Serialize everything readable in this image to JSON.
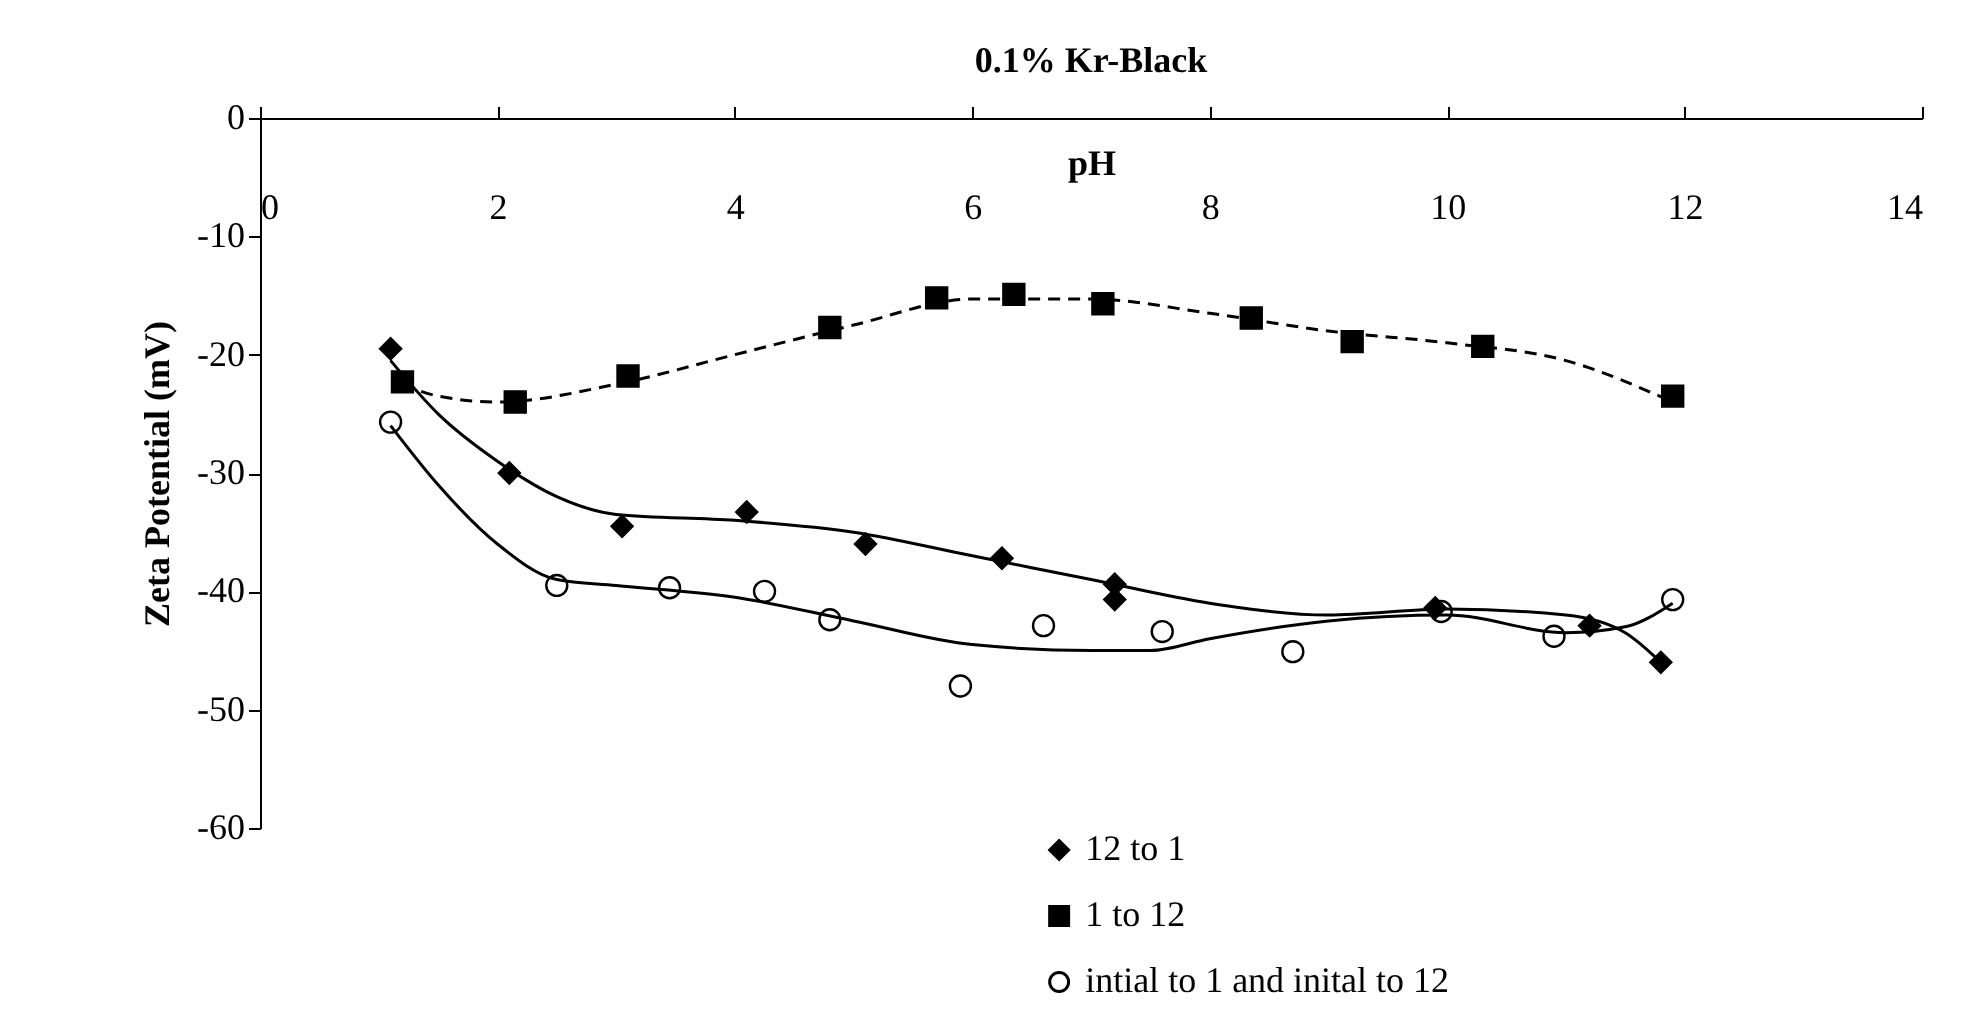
{
  "chart_data": {
    "type": "scatter",
    "title": "0.1% Kr-Black",
    "xlabel": "pH",
    "ylabel": "Zeta Potential (mV)",
    "xlim": [
      0,
      14
    ],
    "xticks": [
      0,
      2,
      4,
      6,
      8,
      10,
      12,
      14
    ],
    "ylim": [
      -60,
      0
    ],
    "yticks": [
      -60,
      -50,
      -40,
      -30,
      -20,
      -10,
      0
    ],
    "grid": false,
    "legend": "bottom",
    "series": [
      {
        "name": "12 to 1",
        "color": "#000000",
        "marker": "diamond",
        "x": [
          1.1,
          2.1,
          3.05,
          4.1,
          5.1,
          6.25,
          7.2,
          7.2,
          9.9,
          11.2,
          11.8
        ],
        "values": [
          -19.5,
          -30,
          -34.5,
          -33.3,
          -36,
          -37.2,
          -39.4,
          -40.7,
          -41.4,
          -42.9,
          -46
        ]
      },
      {
        "name": "1 to 12",
        "color": "#000000",
        "marker": "square",
        "x": [
          1.2,
          2.15,
          3.1,
          4.8,
          5.7,
          6.35,
          7.1,
          8.35,
          9.2,
          10.3,
          11.9
        ],
        "values": [
          -22.3,
          -24,
          -21.8,
          -17.7,
          -15.2,
          -14.9,
          -15.7,
          -16.9,
          -18.9,
          -19.3,
          -23.5
        ]
      },
      {
        "name": "intial to 1 and inital to 12",
        "color": "#000000",
        "marker": "circle",
        "x": [
          1.1,
          2.5,
          3.45,
          4.25,
          4.8,
          5.9,
          6.6,
          7.6,
          8.7,
          9.95,
          10.9,
          11.9
        ],
        "values": [
          -25.7,
          -39.5,
          -39.7,
          -40,
          -42.4,
          -48,
          -42.9,
          -43.4,
          -45.1,
          -41.7,
          -43.8,
          -40.7
        ]
      },
      {
        "type": "line",
        "color": "#000000",
        "line_style": "solid",
        "x": [
          1.1,
          1.5,
          2,
          2.5,
          3,
          4,
          5,
          6,
          7,
          8,
          9,
          10,
          11,
          11.5,
          11.8
        ],
        "values": [
          -20.5,
          -25,
          -29,
          -32,
          -33.5,
          -34,
          -35,
          -37,
          -39,
          -41,
          -42,
          -41.5,
          -42,
          -43.5,
          -46
        ]
      },
      {
        "type": "line",
        "color": "#000000",
        "line_style": "dashed",
        "x": [
          1.2,
          1.5,
          2,
          3,
          4,
          5,
          6,
          7,
          8,
          9,
          10,
          11,
          11.9
        ],
        "values": [
          -22.5,
          -23.5,
          -24,
          -22.5,
          -20,
          -17.5,
          -15.3,
          -15.3,
          -16.5,
          -18,
          -19,
          -20.5,
          -24
        ]
      },
      {
        "type": "line",
        "color": "#000000",
        "line_style": "solid",
        "x": [
          1.1,
          1.5,
          2,
          2.5,
          3,
          4,
          5,
          6,
          7,
          7.5,
          8,
          9,
          10,
          11,
          11.5,
          11.9
        ],
        "values": [
          -26,
          -31,
          -36,
          -39,
          -39.5,
          -40.5,
          -42.5,
          -44.5,
          -45,
          -45,
          -44,
          -42.5,
          -42,
          -43.5,
          -43,
          -41
        ]
      }
    ]
  }
}
